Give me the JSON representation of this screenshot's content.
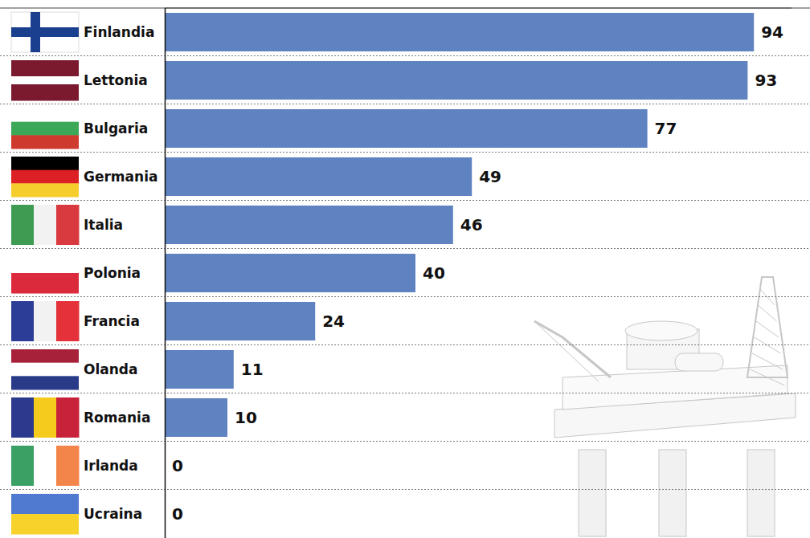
{
  "chart_data": {
    "type": "bar",
    "orientation": "horizontal",
    "categories": [
      "Finlandia",
      "Lettonia",
      "Bulgaria",
      "Germania",
      "Italia",
      "Polonia",
      "Francia",
      "Olanda",
      "Romania",
      "Irlanda",
      "Ucraina"
    ],
    "values": [
      94,
      93,
      77,
      49,
      46,
      40,
      24,
      11,
      10,
      0,
      0
    ],
    "color": "#5f82c0",
    "xlim": [
      0,
      100
    ],
    "data_labels": true,
    "tick_labels": "y",
    "grid": false
  }
}
